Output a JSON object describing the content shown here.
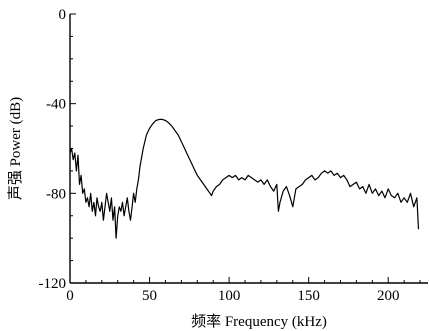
{
  "chart_data": {
    "type": "line",
    "title": "",
    "xlabel": "频率  Frequency (kHz)",
    "ylabel": "声强  Power (dB)",
    "xlim": [
      0,
      225
    ],
    "ylim": [
      -120,
      0
    ],
    "xticks": [
      0,
      50,
      100,
      150,
      200
    ],
    "yticks": [
      0,
      -40,
      -80,
      -120
    ],
    "xtick_labels": [
      "0",
      "50",
      "100",
      "150",
      "200"
    ],
    "ytick_labels": [
      "0",
      "-40",
      "-80",
      "-120"
    ],
    "grid": false,
    "legend": "none",
    "line_color": "#000000",
    "series": [
      {
        "x": [
          0,
          1,
          2,
          3,
          4,
          5,
          6,
          7,
          8,
          9,
          10,
          11,
          12,
          13,
          14,
          15,
          16,
          17,
          18,
          19,
          20,
          21,
          22,
          23,
          24,
          25,
          26,
          27,
          28,
          29,
          30,
          31,
          32,
          33,
          34,
          35,
          36,
          37,
          38,
          39,
          40,
          41,
          42,
          43,
          44,
          45,
          46,
          47,
          48,
          50,
          52,
          54,
          56,
          58,
          60,
          62,
          64,
          66,
          68,
          70,
          72,
          74,
          76,
          78,
          80,
          82,
          84,
          86,
          88,
          89,
          90,
          92,
          94,
          96,
          98,
          100,
          102,
          104,
          106,
          108,
          110,
          112,
          114,
          116,
          118,
          120,
          122,
          124,
          126,
          128,
          130,
          131,
          132,
          134,
          136,
          138,
          140,
          142,
          144,
          146,
          148,
          150,
          152,
          154,
          156,
          158,
          160,
          162,
          164,
          166,
          168,
          170,
          172,
          174,
          176,
          178,
          180,
          182,
          184,
          186,
          188,
          190,
          192,
          194,
          196,
          198,
          200,
          202,
          204,
          206,
          208,
          210,
          212,
          214,
          216,
          218,
          219
        ],
        "y": [
          -62,
          -60,
          -65,
          -62,
          -70,
          -63,
          -76,
          -72,
          -80,
          -78,
          -84,
          -82,
          -86,
          -80,
          -88,
          -84,
          -90,
          -82,
          -86,
          -88,
          -84,
          -92,
          -86,
          -80,
          -84,
          -88,
          -82,
          -92,
          -86,
          -100,
          -90,
          -86,
          -88,
          -84,
          -90,
          -86,
          -82,
          -88,
          -92,
          -86,
          -80,
          -84,
          -78,
          -74,
          -68,
          -64,
          -60,
          -57,
          -54,
          -51,
          -49,
          -47.5,
          -47,
          -47,
          -47.5,
          -48.5,
          -50,
          -52,
          -54,
          -57,
          -60,
          -63,
          -66,
          -69,
          -72,
          -74,
          -76,
          -78,
          -80,
          -81,
          -79,
          -77,
          -76,
          -74,
          -73,
          -72,
          -73,
          -72,
          -74,
          -73,
          -74,
          -72,
          -73,
          -74,
          -75,
          -74,
          -76,
          -74,
          -77,
          -79,
          -76,
          -88,
          -84,
          -79,
          -77,
          -81,
          -86,
          -78,
          -77,
          -76,
          -74,
          -73,
          -72,
          -74,
          -73,
          -71,
          -70,
          -71,
          -70,
          -72,
          -71,
          -73,
          -72,
          -74,
          -77,
          -76,
          -75,
          -78,
          -77,
          -80,
          -76,
          -80,
          -78,
          -81,
          -79,
          -82,
          -78,
          -81,
          -82,
          -80,
          -84,
          -82,
          -84,
          -80,
          -86,
          -82,
          -96
        ]
      }
    ]
  }
}
